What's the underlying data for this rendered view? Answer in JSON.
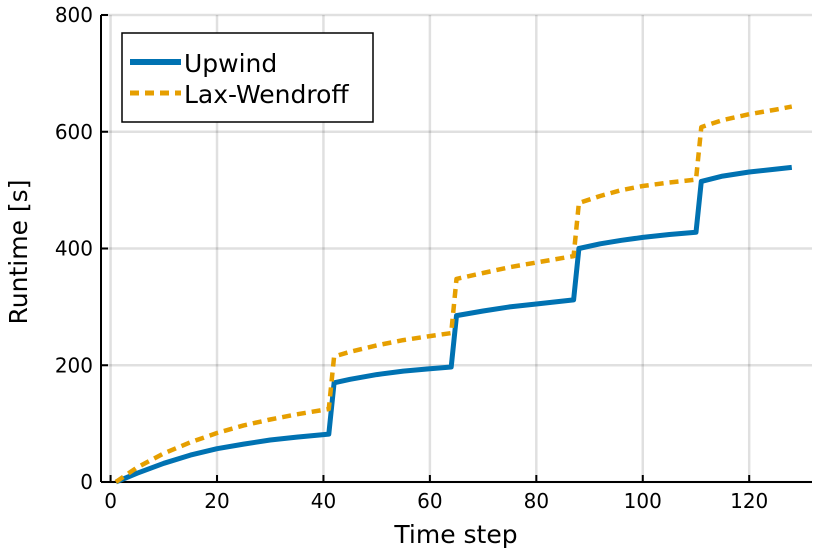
{
  "chart_data": {
    "type": "line",
    "title": "",
    "xlabel": "Time step",
    "ylabel": "Runtime [s]",
    "xlim": [
      -1.8,
      131.8
    ],
    "ylim": [
      0,
      800
    ],
    "xticks": [
      0,
      20,
      40,
      60,
      80,
      100,
      120
    ],
    "yticks": [
      0,
      200,
      400,
      600,
      800
    ],
    "grid": true,
    "legend": "top-left",
    "series": [
      {
        "name": "Upwind",
        "color": "#0072b2",
        "style": "solid",
        "points": [
          [
            1,
            0
          ],
          [
            5,
            15
          ],
          [
            10,
            32
          ],
          [
            15,
            46
          ],
          [
            20,
            57
          ],
          [
            25,
            65
          ],
          [
            30,
            72
          ],
          [
            35,
            77
          ],
          [
            41,
            82
          ],
          [
            42,
            170
          ],
          [
            45,
            176
          ],
          [
            50,
            184
          ],
          [
            55,
            190
          ],
          [
            60,
            194
          ],
          [
            64,
            197
          ],
          [
            65,
            285
          ],
          [
            70,
            293
          ],
          [
            75,
            300
          ],
          [
            80,
            305
          ],
          [
            87,
            312
          ],
          [
            88,
            400
          ],
          [
            92,
            408
          ],
          [
            96,
            414
          ],
          [
            100,
            419
          ],
          [
            105,
            424
          ],
          [
            110,
            428
          ],
          [
            111,
            515
          ],
          [
            115,
            524
          ],
          [
            120,
            531
          ],
          [
            125,
            536
          ],
          [
            128,
            539
          ]
        ]
      },
      {
        "name": "Lax-Wendroff",
        "color": "#e69f00",
        "style": "dashed",
        "points": [
          [
            1,
            0
          ],
          [
            5,
            25
          ],
          [
            10,
            49
          ],
          [
            15,
            68
          ],
          [
            20,
            84
          ],
          [
            25,
            97
          ],
          [
            30,
            107
          ],
          [
            35,
            116
          ],
          [
            41,
            125
          ],
          [
            42,
            215
          ],
          [
            45,
            223
          ],
          [
            50,
            234
          ],
          [
            55,
            243
          ],
          [
            60,
            250
          ],
          [
            64,
            255
          ],
          [
            65,
            348
          ],
          [
            70,
            358
          ],
          [
            75,
            368
          ],
          [
            80,
            376
          ],
          [
            87,
            387
          ],
          [
            88,
            478
          ],
          [
            92,
            490
          ],
          [
            96,
            500
          ],
          [
            100,
            507
          ],
          [
            105,
            513
          ],
          [
            110,
            518
          ],
          [
            111,
            608
          ],
          [
            115,
            620
          ],
          [
            120,
            630
          ],
          [
            125,
            638
          ],
          [
            128,
            643
          ]
        ]
      }
    ]
  }
}
